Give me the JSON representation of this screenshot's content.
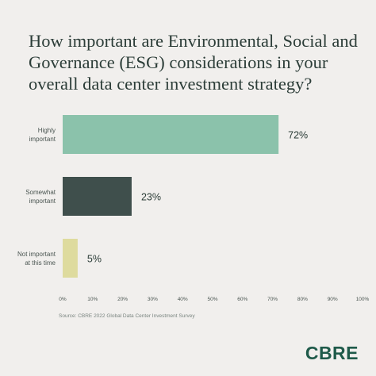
{
  "title": "How important are Environmental, Social and Governance (ESG) considerations in your overall data center investment strategy?",
  "source": "Source: CBRE 2022 Global Data Center Investment Survey",
  "logo": "CBRE",
  "chart_data": {
    "type": "bar",
    "orientation": "horizontal",
    "title": "How important are Environmental, Social and Governance (ESG) considerations in your overall data center investment strategy?",
    "categories": [
      [
        "Highly",
        "important"
      ],
      [
        "Somewhat",
        "important"
      ],
      [
        "Not important",
        "at this time"
      ]
    ],
    "values": [
      72,
      23,
      5
    ],
    "value_labels": [
      "72%",
      "23%",
      "5%"
    ],
    "colors": [
      "#8bc2ab",
      "#3f4f4c",
      "#dedb9e"
    ],
    "xlim": [
      0,
      100
    ],
    "xticks": [
      0,
      10,
      20,
      30,
      40,
      50,
      60,
      70,
      80,
      90,
      100
    ],
    "xtick_labels": [
      "0%",
      "10%",
      "20%",
      "30%",
      "40%",
      "50%",
      "60%",
      "70%",
      "80%",
      "90%",
      "100%"
    ],
    "grid": false,
    "legend": "none"
  }
}
